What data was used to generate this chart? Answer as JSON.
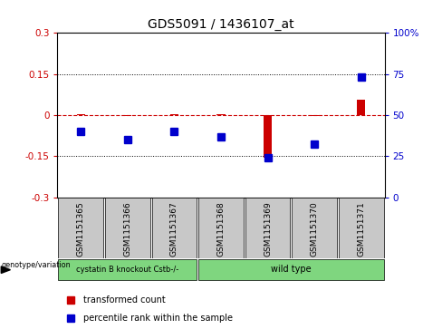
{
  "title": "GDS5091 / 1436107_at",
  "samples": [
    "GSM1151365",
    "GSM1151366",
    "GSM1151367",
    "GSM1151368",
    "GSM1151369",
    "GSM1151370",
    "GSM1151371"
  ],
  "transformed_count": [
    0.002,
    -0.003,
    0.005,
    0.002,
    -0.155,
    -0.002,
    0.055
  ],
  "percentile_rank_left": [
    -0.06,
    -0.09,
    -0.06,
    -0.08,
    -0.155,
    -0.105,
    0.14
  ],
  "ylim": [
    -0.3,
    0.3
  ],
  "yticks_left": [
    -0.3,
    -0.15,
    0,
    0.15,
    0.3
  ],
  "yticks_right": [
    0,
    25,
    50,
    75,
    100
  ],
  "group1_label": "cystatin B knockout Cstb-/-",
  "group2_label": "wild type",
  "group1_indices": [
    0,
    1,
    2
  ],
  "group2_indices": [
    3,
    4,
    5,
    6
  ],
  "group_color": "#7FD67F",
  "sample_box_color": "#C8C8C8",
  "red_color": "#CC0000",
  "blue_color": "#0000CC",
  "bar_width": 0.18,
  "marker_size": 6,
  "title_fontsize": 10,
  "tick_fontsize": 7.5,
  "label_fontsize": 6.5,
  "legend_fontsize": 7
}
